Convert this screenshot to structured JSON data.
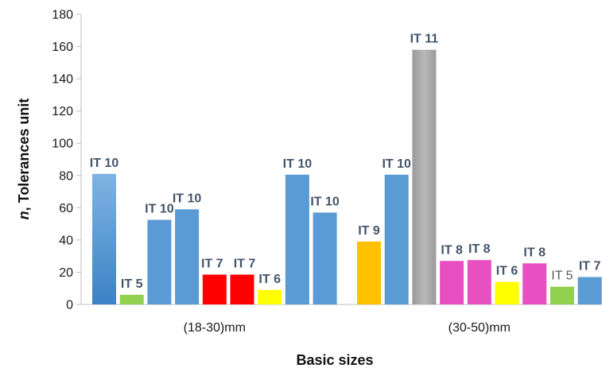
{
  "chart_data": {
    "type": "bar",
    "xlabel": "Basic sizes",
    "ylabel_emph": "n",
    "ylabel_rest": ", Tolerances unit",
    "ylim": [
      0,
      180
    ],
    "yticks": [
      "0",
      "20",
      "40",
      "60",
      "80",
      "100",
      "120",
      "140",
      "160",
      "180"
    ],
    "grid": false,
    "legend": "none",
    "categories": [
      "(18-30)mm",
      "(30-50)mm"
    ],
    "groups": [
      {
        "category": "(18-30)mm",
        "bars": [
          {
            "label": "IT 10",
            "value": 81,
            "color": "#5b9bd5",
            "color_top": "#7bafe0",
            "color_bottom": "#3f86c9"
          },
          {
            "label": "IT 5",
            "value": 6,
            "color": "#92d050"
          },
          {
            "label": "IT 10",
            "value": 52.5,
            "color": "#5b9bd5"
          },
          {
            "label": "IT 10",
            "value": 59,
            "color": "#5b9bd5"
          },
          {
            "label": "IT 7",
            "value": 18.5,
            "color": "#ff0000"
          },
          {
            "label": "IT 7",
            "value": 18.5,
            "color": "#ff0000"
          },
          {
            "label": "IT 6",
            "value": 9,
            "color": "#ffff00"
          },
          {
            "label": "IT 10",
            "value": 80.5,
            "color": "#5b9bd5"
          },
          {
            "label": "IT 10",
            "value": 57,
            "color": "#5b9bd5"
          }
        ]
      },
      {
        "category": "(30-50)mm",
        "bars": [
          {
            "label": "IT 9",
            "value": 39,
            "color": "#ffc000"
          },
          {
            "label": "IT 10",
            "value": 80.5,
            "color": "#5b9bd5"
          },
          {
            "label": "IT 11",
            "value": 158,
            "color": "#a6a6a6"
          },
          {
            "label": "IT 8",
            "value": 27,
            "color": "#e84fc0"
          },
          {
            "label": "IT 8",
            "value": 27.5,
            "color": "#e84fc0"
          },
          {
            "label": "IT 6",
            "value": 14,
            "color": "#ffff00"
          },
          {
            "label": "IT 8",
            "value": 25.5,
            "color": "#e84fc0"
          },
          {
            "label": "IT 5",
            "value": 11,
            "color": "#92d050",
            "light_label": true
          },
          {
            "label": "IT 7",
            "value": 17,
            "color": "#5b9bd5"
          }
        ]
      }
    ]
  }
}
